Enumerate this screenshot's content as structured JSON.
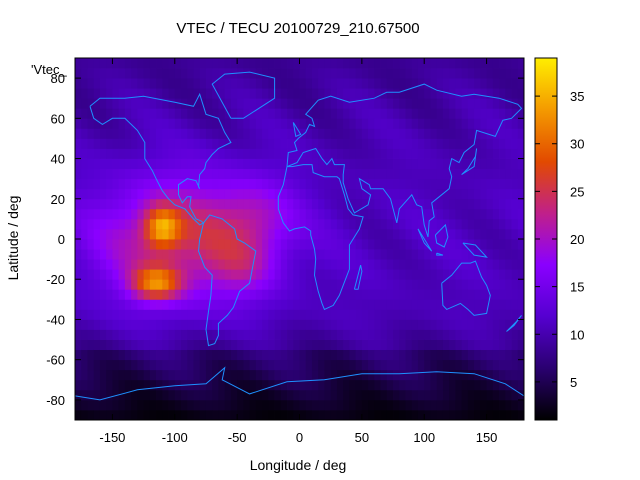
{
  "chart_data": {
    "type": "heatmap",
    "title": "VTEC / TECU 20100729_210.67500",
    "xlabel": "Longitude / deg",
    "ylabel": "Latitude / deg",
    "xlim": [
      -180,
      180
    ],
    "ylim": [
      -90,
      90
    ],
    "x_ticks": [
      "-150",
      "-100",
      "-50",
      "0",
      "50",
      "100",
      "150"
    ],
    "y_ticks": [
      "80",
      "60",
      "40",
      "20",
      "0",
      "-20",
      "-40",
      "-60",
      "-80"
    ],
    "legend_label": "'Vtec_",
    "colorbar": {
      "range": [
        1,
        39
      ],
      "ticks": [
        "35",
        "30",
        "25",
        "20",
        "15",
        "10",
        "5"
      ],
      "palette": [
        "#000000",
        "#2a0070",
        "#5500d0",
        "#8a00ff",
        "#c0208a",
        "#e24a00",
        "#f49a00",
        "#ffee00"
      ]
    },
    "field_description": "Equatorial anomaly peaks near lon -110 lat 5 and lon -110 lat -20 at about 36-39 TECU; elevated band (20-28 TECU) from lon -160 to -25; background 8-13 TECU; polar south below 4 TECU",
    "coastline_color": "#1e90ff"
  }
}
